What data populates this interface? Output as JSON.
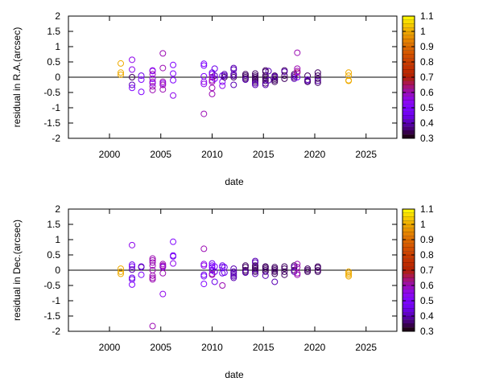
{
  "chart_data": [
    {
      "type": "scatter",
      "xlabel": "date",
      "ylabel": "residual in R.A.(arcsec)",
      "xlim": [
        1996,
        2028
      ],
      "ylim": [
        -2,
        2
      ],
      "xticks": [
        2000,
        2005,
        2010,
        2015,
        2020,
        2025
      ],
      "yticks": [
        -2,
        -1.5,
        -1,
        -0.5,
        0,
        0.5,
        1,
        1.5,
        2
      ],
      "zero_line": true,
      "grid": false,
      "marker": "open-circle",
      "colorbar": {
        "range": [
          0.3,
          1.1
        ],
        "ticks": [
          0.3,
          0.4,
          0.5,
          0.6,
          0.7,
          0.8,
          0.9,
          1,
          1.1
        ],
        "palette": "black-purple-red-yellow"
      },
      "points_fields": [
        "date",
        "residual",
        "color_value"
      ],
      "points": [
        [
          2001.1,
          0.45,
          1.0
        ],
        [
          2001.1,
          0.15,
          1.0
        ],
        [
          2001.1,
          0.08,
          1.0
        ],
        [
          2002.2,
          0.57,
          0.55
        ],
        [
          2002.2,
          0.25,
          0.55
        ],
        [
          2002.2,
          0.0,
          0.35
        ],
        [
          2002.2,
          -0.25,
          0.4
        ],
        [
          2002.2,
          -0.35,
          0.5
        ],
        [
          2003.1,
          0.05,
          0.45
        ],
        [
          2003.1,
          -0.08,
          0.5
        ],
        [
          2003.1,
          -0.48,
          0.5
        ],
        [
          2004.2,
          0.22,
          0.55
        ],
        [
          2004.2,
          0.2,
          0.55
        ],
        [
          2004.2,
          0.1,
          0.6
        ],
        [
          2004.2,
          -0.05,
          0.55
        ],
        [
          2004.2,
          -0.15,
          0.6
        ],
        [
          2004.2,
          -0.3,
          0.6
        ],
        [
          2004.2,
          -0.42,
          0.6
        ],
        [
          2004.2,
          -0.2,
          0.55
        ],
        [
          2005.2,
          0.78,
          0.6
        ],
        [
          2005.2,
          0.3,
          0.6
        ],
        [
          2005.2,
          -0.15,
          0.6
        ],
        [
          2005.2,
          -0.2,
          0.55
        ],
        [
          2005.2,
          -0.4,
          0.6
        ],
        [
          2005.2,
          -0.25,
          0.6
        ],
        [
          2006.2,
          0.4,
          0.5
        ],
        [
          2006.2,
          0.12,
          0.5
        ],
        [
          2006.2,
          -0.1,
          0.5
        ],
        [
          2006.2,
          -0.6,
          0.55
        ],
        [
          2009.2,
          0.44,
          0.5
        ],
        [
          2009.2,
          0.38,
          0.5
        ],
        [
          2009.2,
          0.03,
          0.5
        ],
        [
          2009.2,
          -0.15,
          0.55
        ],
        [
          2009.2,
          -0.22,
          0.55
        ],
        [
          2009.2,
          -1.2,
          0.6
        ],
        [
          2010.0,
          0.15,
          0.45
        ],
        [
          2010.0,
          0.1,
          0.5
        ],
        [
          2010.0,
          -0.1,
          0.6
        ],
        [
          2010.0,
          -0.15,
          0.6
        ],
        [
          2010.0,
          -0.35,
          0.6
        ],
        [
          2010.0,
          -0.55,
          0.6
        ],
        [
          2010.0,
          0.0,
          0.6
        ],
        [
          2010.25,
          0.28,
          0.45
        ],
        [
          2010.25,
          0.05,
          0.4
        ],
        [
          2010.25,
          -0.05,
          0.5
        ],
        [
          2011.0,
          0.05,
          0.45
        ],
        [
          2011.0,
          -0.15,
          0.5
        ],
        [
          2011.0,
          -0.28,
          0.55
        ],
        [
          2011.2,
          0.1,
          0.4
        ],
        [
          2011.2,
          0.0,
          0.35
        ],
        [
          2011.2,
          0.05,
          0.4
        ],
        [
          2012.1,
          0.3,
          0.4
        ],
        [
          2012.1,
          0.25,
          0.4
        ],
        [
          2012.1,
          0.1,
          0.4
        ],
        [
          2012.1,
          0.0,
          0.35
        ],
        [
          2012.1,
          -0.25,
          0.4
        ],
        [
          2012.1,
          0.05,
          0.4
        ],
        [
          2013.25,
          0.1,
          0.35
        ],
        [
          2013.25,
          0.05,
          0.35
        ],
        [
          2013.25,
          0.0,
          0.35
        ],
        [
          2013.25,
          -0.05,
          0.35
        ],
        [
          2013.25,
          -0.08,
          0.4
        ],
        [
          2014.2,
          0.12,
          0.35
        ],
        [
          2014.2,
          0.05,
          0.35
        ],
        [
          2014.2,
          -0.05,
          0.35
        ],
        [
          2014.2,
          -0.1,
          0.35
        ],
        [
          2014.2,
          -0.15,
          0.35
        ],
        [
          2014.2,
          -0.2,
          0.4
        ],
        [
          2014.2,
          -0.25,
          0.4
        ],
        [
          2014.2,
          0.0,
          0.35
        ],
        [
          2015.2,
          0.22,
          0.35
        ],
        [
          2015.2,
          0.18,
          0.35
        ],
        [
          2015.2,
          0.05,
          0.35
        ],
        [
          2015.2,
          0.0,
          0.35
        ],
        [
          2015.2,
          -0.05,
          0.35
        ],
        [
          2015.2,
          -0.12,
          0.35
        ],
        [
          2015.2,
          -0.2,
          0.35
        ],
        [
          2015.2,
          -0.25,
          0.4
        ],
        [
          2015.5,
          0.2,
          0.4
        ],
        [
          2015.5,
          -0.1,
          0.4
        ],
        [
          2016.1,
          0.05,
          0.35
        ],
        [
          2016.1,
          0.0,
          0.35
        ],
        [
          2016.1,
          -0.05,
          0.35
        ],
        [
          2016.1,
          -0.1,
          0.35
        ],
        [
          2016.1,
          -0.15,
          0.35
        ],
        [
          2016.1,
          0.02,
          0.4
        ],
        [
          2017.05,
          0.22,
          0.35
        ],
        [
          2017.05,
          0.18,
          0.4
        ],
        [
          2017.05,
          0.05,
          0.35
        ],
        [
          2017.05,
          -0.05,
          0.35
        ],
        [
          2018.0,
          0.1,
          0.35
        ],
        [
          2018.0,
          0.05,
          0.4
        ],
        [
          2018.0,
          0.0,
          0.35
        ],
        [
          2018.0,
          -0.05,
          0.4
        ],
        [
          2018.3,
          0.8,
          0.6
        ],
        [
          2018.3,
          0.28,
          0.6
        ],
        [
          2018.3,
          0.15,
          0.65
        ],
        [
          2018.3,
          0.2,
          0.6
        ],
        [
          2018.3,
          0.0,
          0.5
        ],
        [
          2019.3,
          0.05,
          0.35
        ],
        [
          2019.3,
          -0.08,
          0.4
        ],
        [
          2019.3,
          -0.12,
          0.4
        ],
        [
          2019.3,
          -0.15,
          0.35
        ],
        [
          2020.3,
          0.15,
          0.35
        ],
        [
          2020.3,
          0.05,
          0.35
        ],
        [
          2020.3,
          -0.05,
          0.35
        ],
        [
          2020.3,
          -0.12,
          0.4
        ],
        [
          2020.3,
          -0.18,
          0.35
        ],
        [
          2023.3,
          0.15,
          1.0
        ],
        [
          2023.3,
          0.05,
          1.0
        ],
        [
          2023.3,
          -0.1,
          1.0
        ],
        [
          2023.3,
          -0.12,
          1.0
        ]
      ]
    },
    {
      "type": "scatter",
      "xlabel": "date",
      "ylabel": "residual in Dec.(arcsec)",
      "xlim": [
        1996,
        2028
      ],
      "ylim": [
        -2,
        2
      ],
      "xticks": [
        2000,
        2005,
        2010,
        2015,
        2020,
        2025
      ],
      "yticks": [
        -2,
        -1.5,
        -1,
        -0.5,
        0,
        0.5,
        1,
        1.5,
        2
      ],
      "zero_line": true,
      "grid": false,
      "marker": "open-circle",
      "colorbar": {
        "range": [
          0.3,
          1.1
        ],
        "ticks": [
          0.3,
          0.4,
          0.5,
          0.6,
          0.7,
          0.8,
          0.9,
          1,
          1.1
        ],
        "palette": "black-purple-red-yellow"
      },
      "points_fields": [
        "date",
        "residual",
        "color_value"
      ],
      "points": [
        [
          2001.1,
          0.05,
          1.0
        ],
        [
          2001.1,
          -0.05,
          1.0
        ],
        [
          2001.1,
          -0.12,
          1.0
        ],
        [
          2002.2,
          0.82,
          0.55
        ],
        [
          2002.2,
          0.18,
          0.45
        ],
        [
          2002.2,
          0.12,
          0.5
        ],
        [
          2002.2,
          0.02,
          0.4
        ],
        [
          2002.2,
          -0.25,
          0.45
        ],
        [
          2002.2,
          -0.3,
          0.45
        ],
        [
          2002.2,
          -0.47,
          0.5
        ],
        [
          2003.1,
          0.12,
          0.45
        ],
        [
          2003.1,
          0.1,
          0.4
        ],
        [
          2003.1,
          -0.15,
          0.5
        ],
        [
          2004.2,
          0.38,
          0.6
        ],
        [
          2004.2,
          0.32,
          0.6
        ],
        [
          2004.2,
          0.25,
          0.6
        ],
        [
          2004.2,
          0.15,
          0.6
        ],
        [
          2004.2,
          0.0,
          0.6
        ],
        [
          2004.2,
          -0.18,
          0.6
        ],
        [
          2004.2,
          -0.25,
          0.6
        ],
        [
          2004.2,
          -0.3,
          0.6
        ],
        [
          2004.2,
          -1.83,
          0.6
        ],
        [
          2005.2,
          0.2,
          0.6
        ],
        [
          2005.2,
          0.12,
          0.6
        ],
        [
          2005.2,
          0.1,
          0.55
        ],
        [
          2005.2,
          -0.1,
          0.6
        ],
        [
          2005.2,
          -0.78,
          0.55
        ],
        [
          2005.2,
          0.15,
          0.6
        ],
        [
          2006.2,
          0.93,
          0.5
        ],
        [
          2006.2,
          0.48,
          0.45
        ],
        [
          2006.2,
          0.45,
          0.5
        ],
        [
          2006.2,
          0.22,
          0.55
        ],
        [
          2009.2,
          0.7,
          0.6
        ],
        [
          2009.2,
          0.2,
          0.55
        ],
        [
          2009.2,
          0.15,
          0.55
        ],
        [
          2009.2,
          -0.15,
          0.45
        ],
        [
          2009.2,
          -0.2,
          0.5
        ],
        [
          2009.2,
          -0.45,
          0.5
        ],
        [
          2010.0,
          0.22,
          0.45
        ],
        [
          2010.0,
          0.15,
          0.5
        ],
        [
          2010.0,
          0.1,
          0.5
        ],
        [
          2010.0,
          -0.12,
          0.6
        ],
        [
          2010.0,
          -0.15,
          0.6
        ],
        [
          2010.0,
          0.0,
          0.45
        ],
        [
          2010.25,
          0.12,
          0.5
        ],
        [
          2010.25,
          -0.05,
          0.45
        ],
        [
          2010.25,
          -0.38,
          0.45
        ],
        [
          2011.0,
          0.15,
          0.45
        ],
        [
          2011.0,
          0.1,
          0.45
        ],
        [
          2011.0,
          -0.1,
          0.45
        ],
        [
          2011.0,
          -0.5,
          0.6
        ],
        [
          2011.2,
          0.1,
          0.45
        ],
        [
          2011.2,
          -0.08,
          0.45
        ],
        [
          2012.1,
          0.05,
          0.4
        ],
        [
          2012.1,
          -0.05,
          0.4
        ],
        [
          2012.1,
          -0.15,
          0.4
        ],
        [
          2012.1,
          -0.25,
          0.4
        ],
        [
          2012.1,
          -0.2,
          0.4
        ],
        [
          2012.1,
          -0.1,
          0.4
        ],
        [
          2013.25,
          0.15,
          0.35
        ],
        [
          2013.25,
          0.1,
          0.35
        ],
        [
          2013.25,
          0.0,
          0.35
        ],
        [
          2013.25,
          -0.05,
          0.35
        ],
        [
          2013.25,
          -0.08,
          0.4
        ],
        [
          2014.2,
          0.3,
          0.4
        ],
        [
          2014.2,
          0.25,
          0.4
        ],
        [
          2014.2,
          0.15,
          0.35
        ],
        [
          2014.2,
          0.1,
          0.35
        ],
        [
          2014.2,
          0.05,
          0.35
        ],
        [
          2014.2,
          0.0,
          0.35
        ],
        [
          2014.2,
          -0.05,
          0.35
        ],
        [
          2014.2,
          -0.12,
          0.4
        ],
        [
          2015.2,
          0.12,
          0.35
        ],
        [
          2015.2,
          0.1,
          0.35
        ],
        [
          2015.2,
          0.05,
          0.35
        ],
        [
          2015.2,
          0.0,
          0.35
        ],
        [
          2015.2,
          -0.05,
          0.35
        ],
        [
          2015.2,
          -0.18,
          0.4
        ],
        [
          2016.1,
          0.1,
          0.35
        ],
        [
          2016.1,
          0.05,
          0.35
        ],
        [
          2016.1,
          -0.05,
          0.35
        ],
        [
          2016.1,
          -0.12,
          0.35
        ],
        [
          2016.1,
          -0.38,
          0.4
        ],
        [
          2016.1,
          0.0,
          0.35
        ],
        [
          2017.05,
          0.12,
          0.35
        ],
        [
          2017.05,
          0.05,
          0.35
        ],
        [
          2017.05,
          -0.05,
          0.35
        ],
        [
          2017.05,
          -0.15,
          0.35
        ],
        [
          2018.0,
          0.15,
          0.35
        ],
        [
          2018.0,
          0.1,
          0.4
        ],
        [
          2018.0,
          0.0,
          0.35
        ],
        [
          2018.0,
          -0.05,
          0.4
        ],
        [
          2018.3,
          0.2,
          0.6
        ],
        [
          2018.3,
          0.1,
          0.6
        ],
        [
          2018.3,
          -0.1,
          0.6
        ],
        [
          2018.3,
          -0.15,
          0.6
        ],
        [
          2019.3,
          0.05,
          0.35
        ],
        [
          2019.3,
          0.0,
          0.35
        ],
        [
          2019.3,
          -0.05,
          0.35
        ],
        [
          2020.3,
          0.12,
          0.35
        ],
        [
          2020.3,
          0.08,
          0.35
        ],
        [
          2020.3,
          0.0,
          0.35
        ],
        [
          2020.3,
          -0.05,
          0.35
        ],
        [
          2023.3,
          -0.05,
          1.0
        ],
        [
          2023.3,
          -0.1,
          1.0
        ],
        [
          2023.3,
          -0.15,
          1.0
        ],
        [
          2023.3,
          -0.2,
          1.0
        ]
      ]
    }
  ]
}
